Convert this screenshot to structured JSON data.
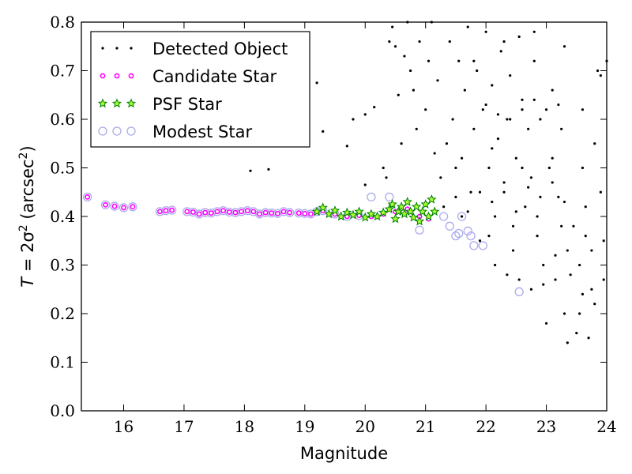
{
  "chart_data": {
    "type": "scatter",
    "xlabel": "Magnitude",
    "ylabel": {
      "prefix": "T",
      "eq": " = 2σ",
      "sup1": "2",
      "unit": " (arcsec",
      "sup2": "2",
      "close": ")"
    },
    "xlim": [
      15.3,
      24
    ],
    "ylim": [
      0,
      0.8
    ],
    "xticks": [
      16,
      17,
      18,
      19,
      20,
      21,
      22,
      23,
      24
    ],
    "yticks": [
      0.0,
      0.1,
      0.2,
      0.3,
      0.4,
      0.5,
      0.6,
      0.7,
      0.8
    ],
    "grid": false,
    "legend_position": "top-left",
    "series": [
      {
        "name": "Detected Object",
        "color": "#000000",
        "marker": "dot",
        "points": [
          [
            15.4,
            0.44
          ],
          [
            15.7,
            0.424
          ],
          [
            15.85,
            0.421
          ],
          [
            16.0,
            0.418
          ],
          [
            16.15,
            0.42
          ],
          [
            16.6,
            0.41
          ],
          [
            16.7,
            0.412
          ],
          [
            16.8,
            0.413
          ],
          [
            17.05,
            0.41
          ],
          [
            17.15,
            0.409
          ],
          [
            17.25,
            0.405
          ],
          [
            17.35,
            0.408
          ],
          [
            17.45,
            0.407
          ],
          [
            17.55,
            0.41
          ],
          [
            17.65,
            0.412
          ],
          [
            17.75,
            0.409
          ],
          [
            17.85,
            0.408
          ],
          [
            17.95,
            0.41
          ],
          [
            18.05,
            0.412
          ],
          [
            18.15,
            0.41
          ],
          [
            18.25,
            0.405
          ],
          [
            18.35,
            0.408
          ],
          [
            18.45,
            0.407
          ],
          [
            18.55,
            0.406
          ],
          [
            18.65,
            0.41
          ],
          [
            18.75,
            0.408
          ],
          [
            18.9,
            0.407
          ],
          [
            19.0,
            0.406
          ],
          [
            19.1,
            0.405
          ],
          [
            19.2,
            0.41
          ],
          [
            19.3,
            0.412
          ],
          [
            19.5,
            0.405
          ],
          [
            19.7,
            0.4
          ],
          [
            19.9,
            0.402
          ],
          [
            20.1,
            0.4
          ],
          [
            20.3,
            0.405
          ],
          [
            20.5,
            0.41
          ],
          [
            20.7,
            0.415
          ],
          [
            20.9,
            0.4
          ],
          [
            21.05,
            0.395
          ],
          [
            18.1,
            0.494
          ],
          [
            18.4,
            0.497
          ],
          [
            19.2,
            0.675
          ],
          [
            19.3,
            0.575
          ],
          [
            19.7,
            0.545
          ],
          [
            19.8,
            0.6
          ],
          [
            20.0,
            0.61
          ],
          [
            20.0,
            0.465
          ],
          [
            20.15,
            0.625
          ],
          [
            20.3,
            0.5
          ],
          [
            20.35,
            0.48
          ],
          [
            20.4,
            0.76
          ],
          [
            20.45,
            0.79
          ],
          [
            20.5,
            0.75
          ],
          [
            20.55,
            0.65
          ],
          [
            20.6,
            0.55
          ],
          [
            20.65,
            0.73
          ],
          [
            20.7,
            0.8
          ],
          [
            20.75,
            0.7
          ],
          [
            20.8,
            0.66
          ],
          [
            20.85,
            0.58
          ],
          [
            20.9,
            0.76
          ],
          [
            21.0,
            0.62
          ],
          [
            21.05,
            0.72
          ],
          [
            21.1,
            0.8
          ],
          [
            21.15,
            0.53
          ],
          [
            21.2,
            0.68
          ],
          [
            21.25,
            0.48
          ],
          [
            21.3,
            0.42
          ],
          [
            21.35,
            0.55
          ],
          [
            21.4,
            0.76
          ],
          [
            21.45,
            0.6
          ],
          [
            21.5,
            0.5
          ],
          [
            21.55,
            0.72
          ],
          [
            21.6,
            0.4
          ],
          [
            21.65,
            0.66
          ],
          [
            21.7,
            0.79
          ],
          [
            21.75,
            0.45
          ],
          [
            21.8,
            0.58
          ],
          [
            21.85,
            0.7
          ],
          [
            21.9,
            0.35
          ],
          [
            21.95,
            0.62
          ],
          [
            22.0,
            0.78
          ],
          [
            22.05,
            0.5
          ],
          [
            22.1,
            0.67
          ],
          [
            22.15,
            0.4
          ],
          [
            22.2,
            0.56
          ],
          [
            22.25,
            0.74
          ],
          [
            22.3,
            0.45
          ],
          [
            22.35,
            0.6
          ],
          [
            22.4,
            0.69
          ],
          [
            22.45,
            0.33
          ],
          [
            22.5,
            0.52
          ],
          [
            22.55,
            0.77
          ],
          [
            22.6,
            0.64
          ],
          [
            22.65,
            0.42
          ],
          [
            22.7,
            0.58
          ],
          [
            22.75,
            0.48
          ],
          [
            22.8,
            0.72
          ],
          [
            22.85,
            0.36
          ],
          [
            22.9,
            0.6
          ],
          [
            22.95,
            0.26
          ],
          [
            23.0,
            0.18
          ],
          [
            23.05,
            0.5
          ],
          [
            23.1,
            0.66
          ],
          [
            23.15,
            0.32
          ],
          [
            23.2,
            0.44
          ],
          [
            23.25,
            0.58
          ],
          [
            23.3,
            0.2
          ],
          [
            23.35,
            0.14
          ],
          [
            23.4,
            0.28
          ],
          [
            23.45,
            0.38
          ],
          [
            23.5,
            0.16
          ],
          [
            23.55,
            0.3
          ],
          [
            23.6,
            0.24
          ],
          [
            23.65,
            0.36
          ],
          [
            23.7,
            0.15
          ],
          [
            23.75,
            0.33
          ],
          [
            23.8,
            0.22
          ],
          [
            23.85,
            0.7
          ],
          [
            23.9,
            0.69
          ],
          [
            23.95,
            0.27
          ],
          [
            24.0,
            0.72
          ],
          [
            21.5,
            0.44
          ],
          [
            21.7,
            0.41
          ],
          [
            21.9,
            0.45
          ],
          [
            22.1,
            0.43
          ],
          [
            22.3,
            0.47
          ],
          [
            22.5,
            0.41
          ],
          [
            22.7,
            0.46
          ],
          [
            22.9,
            0.44
          ],
          [
            23.1,
            0.47
          ],
          [
            23.3,
            0.43
          ],
          [
            22.0,
            0.63
          ],
          [
            22.2,
            0.61
          ],
          [
            22.4,
            0.6
          ],
          [
            22.6,
            0.62
          ],
          [
            22.8,
            0.64
          ],
          [
            23.0,
            0.62
          ],
          [
            23.2,
            0.63
          ],
          [
            22.15,
            0.3
          ],
          [
            22.35,
            0.28
          ],
          [
            22.55,
            0.27
          ],
          [
            22.75,
            0.25
          ],
          [
            22.95,
            0.3
          ],
          [
            23.15,
            0.27
          ],
          [
            23.35,
            0.33
          ],
          [
            23.55,
            0.2
          ],
          [
            23.75,
            0.25
          ],
          [
            23.95,
            0.35
          ],
          [
            21.8,
            0.72
          ],
          [
            22.3,
            0.76
          ],
          [
            22.8,
            0.78
          ],
          [
            23.3,
            0.75
          ],
          [
            23.6,
            0.5
          ],
          [
            23.8,
            0.55
          ],
          [
            23.9,
            0.45
          ],
          [
            21.6,
            0.52
          ],
          [
            22.1,
            0.54
          ],
          [
            22.6,
            0.5
          ],
          [
            23.1,
            0.52
          ],
          [
            23.6,
            0.62
          ],
          [
            22.05,
            0.36
          ],
          [
            22.45,
            0.38
          ],
          [
            22.85,
            0.4
          ],
          [
            23.25,
            0.38
          ],
          [
            23.65,
            0.42
          ]
        ]
      },
      {
        "name": "Candidate Star",
        "color": "#ff00ff",
        "marker": "circle-small",
        "points": [
          [
            15.4,
            0.44
          ],
          [
            15.7,
            0.424
          ],
          [
            15.85,
            0.421
          ],
          [
            16.0,
            0.418
          ],
          [
            16.15,
            0.42
          ],
          [
            16.6,
            0.41
          ],
          [
            16.7,
            0.412
          ],
          [
            16.8,
            0.413
          ],
          [
            17.05,
            0.41
          ],
          [
            17.15,
            0.409
          ],
          [
            17.25,
            0.405
          ],
          [
            17.35,
            0.408
          ],
          [
            17.45,
            0.407
          ],
          [
            17.55,
            0.41
          ],
          [
            17.65,
            0.412
          ],
          [
            17.75,
            0.409
          ],
          [
            17.85,
            0.408
          ],
          [
            17.95,
            0.41
          ],
          [
            18.05,
            0.412
          ],
          [
            18.15,
            0.41
          ],
          [
            18.25,
            0.405
          ],
          [
            18.35,
            0.408
          ],
          [
            18.45,
            0.407
          ],
          [
            18.55,
            0.406
          ],
          [
            18.65,
            0.41
          ],
          [
            18.75,
            0.408
          ],
          [
            18.9,
            0.407
          ],
          [
            19.0,
            0.406
          ],
          [
            19.1,
            0.405
          ],
          [
            19.2,
            0.41
          ],
          [
            19.3,
            0.412
          ],
          [
            19.5,
            0.405
          ],
          [
            19.7,
            0.4
          ],
          [
            19.9,
            0.402
          ],
          [
            20.1,
            0.4
          ],
          [
            20.3,
            0.405
          ],
          [
            20.5,
            0.41
          ],
          [
            20.7,
            0.415
          ],
          [
            20.9,
            0.4
          ],
          [
            21.05,
            0.395
          ]
        ]
      },
      {
        "name": "PSF Star",
        "color": "#008000",
        "marker": "star",
        "points": [
          [
            19.2,
            0.41
          ],
          [
            19.3,
            0.418
          ],
          [
            19.4,
            0.405
          ],
          [
            19.5,
            0.412
          ],
          [
            19.6,
            0.4
          ],
          [
            19.7,
            0.408
          ],
          [
            19.8,
            0.403
          ],
          [
            19.9,
            0.41
          ],
          [
            20.0,
            0.398
          ],
          [
            20.1,
            0.405
          ],
          [
            20.2,
            0.4
          ],
          [
            20.3,
            0.408
          ],
          [
            20.4,
            0.415
          ],
          [
            20.45,
            0.425
          ],
          [
            20.5,
            0.395
          ],
          [
            20.55,
            0.41
          ],
          [
            20.6,
            0.42
          ],
          [
            20.65,
            0.405
          ],
          [
            20.7,
            0.43
          ],
          [
            20.75,
            0.41
          ],
          [
            20.8,
            0.398
          ],
          [
            20.85,
            0.42
          ],
          [
            20.9,
            0.39
          ],
          [
            20.95,
            0.41
          ],
          [
            21.0,
            0.425
          ],
          [
            21.05,
            0.4
          ],
          [
            21.1,
            0.435
          ],
          [
            21.15,
            0.41
          ]
        ]
      },
      {
        "name": "Modest Star",
        "color": "#aaaaee",
        "marker": "circle-open",
        "points": [
          [
            15.4,
            0.44
          ],
          [
            15.7,
            0.424
          ],
          [
            15.85,
            0.421
          ],
          [
            16.0,
            0.418
          ],
          [
            16.15,
            0.42
          ],
          [
            16.6,
            0.41
          ],
          [
            16.7,
            0.412
          ],
          [
            16.8,
            0.413
          ],
          [
            17.05,
            0.41
          ],
          [
            17.15,
            0.409
          ],
          [
            17.25,
            0.405
          ],
          [
            17.35,
            0.408
          ],
          [
            17.45,
            0.407
          ],
          [
            17.55,
            0.41
          ],
          [
            17.65,
            0.412
          ],
          [
            17.75,
            0.409
          ],
          [
            17.85,
            0.408
          ],
          [
            17.95,
            0.41
          ],
          [
            18.05,
            0.412
          ],
          [
            18.15,
            0.41
          ],
          [
            18.25,
            0.405
          ],
          [
            18.35,
            0.408
          ],
          [
            18.45,
            0.407
          ],
          [
            18.55,
            0.406
          ],
          [
            18.65,
            0.41
          ],
          [
            18.75,
            0.408
          ],
          [
            18.9,
            0.407
          ],
          [
            19.0,
            0.406
          ],
          [
            19.1,
            0.405
          ],
          [
            19.2,
            0.41
          ],
          [
            19.3,
            0.412
          ],
          [
            19.5,
            0.405
          ],
          [
            19.7,
            0.4
          ],
          [
            19.9,
            0.402
          ],
          [
            20.1,
            0.44
          ],
          [
            20.4,
            0.44
          ],
          [
            20.9,
            0.372
          ],
          [
            21.3,
            0.4
          ],
          [
            21.4,
            0.38
          ],
          [
            21.5,
            0.36
          ],
          [
            21.6,
            0.4
          ],
          [
            21.7,
            0.37
          ],
          [
            21.8,
            0.34
          ],
          [
            21.95,
            0.34
          ],
          [
            21.55,
            0.365
          ],
          [
            21.75,
            0.36
          ],
          [
            22.55,
            0.245
          ]
        ]
      }
    ]
  }
}
